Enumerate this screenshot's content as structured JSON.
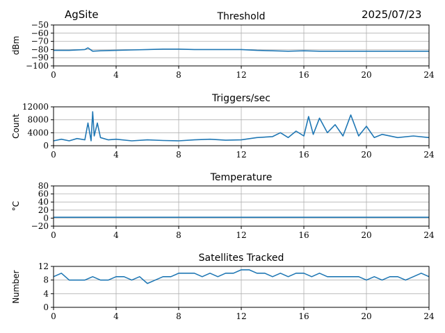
{
  "header": {
    "site": "AgSite",
    "date": "2025/07/23"
  },
  "colors": {
    "line": "#1f77b4",
    "grid": "#b0b0b0",
    "axis": "#000000"
  },
  "chart_data": [
    {
      "type": "line",
      "title": "Threshold",
      "ylabel": "dBm",
      "xlim": [
        0,
        24
      ],
      "ylim": [
        -100,
        -50
      ],
      "xticks": [
        0,
        4,
        8,
        12,
        16,
        20,
        24
      ],
      "xtick_labels": [
        "0",
        "4",
        "8",
        "12",
        "16",
        "20",
        "24"
      ],
      "yticks": [
        -100,
        -90,
        -80,
        -70,
        -60,
        -50
      ],
      "ytick_labels": [
        "−100",
        "−90",
        "−80",
        "−70",
        "−60",
        "−50"
      ],
      "grid": true,
      "series": [
        {
          "x": [
            0,
            1,
            2,
            2.2,
            2.5,
            3,
            4,
            5,
            6,
            7,
            8,
            9,
            10,
            11,
            12,
            13,
            14,
            15,
            16,
            17,
            18,
            19,
            20,
            21,
            22,
            23,
            24
          ],
          "y": [
            -81,
            -81,
            -80,
            -78,
            -82,
            -81.5,
            -81,
            -80.5,
            -80,
            -79.5,
            -79.5,
            -80,
            -80,
            -80,
            -80,
            -81,
            -81.5,
            -82,
            -81.5,
            -82,
            -82,
            -82,
            -82,
            -82,
            -82,
            -82,
            -82
          ]
        }
      ]
    },
    {
      "type": "line",
      "title": "Triggers/sec",
      "ylabel": "Count",
      "xlim": [
        0,
        24
      ],
      "ylim": [
        0,
        12000
      ],
      "xticks": [
        0,
        4,
        8,
        12,
        16,
        20,
        24
      ],
      "xtick_labels": [
        "0",
        "4",
        "8",
        "12",
        "16",
        "20",
        "24"
      ],
      "yticks": [
        0,
        4000,
        8000,
        12000
      ],
      "ytick_labels": [
        "0",
        "4000",
        "8000",
        "12000"
      ],
      "grid": true,
      "series": [
        {
          "x": [
            0,
            0.5,
            1,
            1.5,
            2,
            2.2,
            2.4,
            2.5,
            2.6,
            2.8,
            3,
            3.5,
            4,
            5,
            6,
            7,
            8,
            9,
            10,
            11,
            12,
            13,
            14,
            14.5,
            15,
            15.5,
            16,
            16.3,
            16.6,
            17,
            17.5,
            18,
            18.5,
            19,
            19.5,
            20,
            20.5,
            21,
            22,
            23,
            24
          ],
          "y": [
            1500,
            2000,
            1500,
            2200,
            1800,
            7000,
            1500,
            10500,
            3000,
            7000,
            2500,
            1800,
            2000,
            1500,
            1800,
            1600,
            1500,
            1800,
            2000,
            1700,
            1800,
            2500,
            2800,
            4000,
            2500,
            4500,
            3000,
            9000,
            3500,
            8500,
            4000,
            6500,
            3000,
            9500,
            3000,
            6000,
            2500,
            3500,
            2500,
            3000,
            2500
          ]
        }
      ]
    },
    {
      "type": "line",
      "title": "Temperature",
      "ylabel": "°C",
      "xlim": [
        0,
        24
      ],
      "ylim": [
        -20,
        80
      ],
      "xticks": [
        0,
        4,
        8,
        12,
        16,
        20,
        24
      ],
      "xtick_labels": [
        "0",
        "4",
        "8",
        "12",
        "16",
        "20",
        "24"
      ],
      "yticks": [
        -20,
        0,
        20,
        40,
        60,
        80
      ],
      "ytick_labels": [
        "−20",
        "0",
        "20",
        "40",
        "60",
        "80"
      ],
      "grid": true,
      "series": [
        {
          "x": [
            0,
            24
          ],
          "y": [
            2,
            2
          ]
        }
      ]
    },
    {
      "type": "line",
      "title": "Satellites Tracked",
      "ylabel": "Number",
      "xlim": [
        0,
        24
      ],
      "ylim": [
        0,
        12
      ],
      "xticks": [
        0,
        4,
        8,
        12,
        16,
        20,
        24
      ],
      "xtick_labels": [
        "0",
        "4",
        "8",
        "12",
        "16",
        "20",
        "24"
      ],
      "yticks": [
        0,
        4,
        8,
        12
      ],
      "ytick_labels": [
        "0",
        "4",
        "8",
        "12"
      ],
      "grid": true,
      "series": [
        {
          "x": [
            0,
            0.5,
            1,
            1.5,
            2,
            2.5,
            3,
            3.5,
            4,
            4.5,
            5,
            5.5,
            6,
            6.5,
            7,
            7.5,
            8,
            8.5,
            9,
            9.5,
            10,
            10.5,
            11,
            11.5,
            12,
            12.5,
            13,
            13.5,
            14,
            14.5,
            15,
            15.5,
            16,
            16.5,
            17,
            17.5,
            18,
            18.5,
            19,
            19.5,
            20,
            20.5,
            21,
            21.5,
            22,
            22.5,
            23,
            23.5,
            24
          ],
          "y": [
            9,
            10,
            8,
            8,
            8,
            9,
            8,
            8,
            9,
            9,
            8,
            9,
            7,
            8,
            9,
            9,
            10,
            10,
            10,
            9,
            10,
            9,
            10,
            10,
            11,
            11,
            10,
            10,
            9,
            10,
            9,
            10,
            10,
            9,
            10,
            9,
            9,
            9,
            9,
            9,
            8,
            9,
            8,
            9,
            9,
            8,
            9,
            10,
            9
          ]
        }
      ]
    }
  ]
}
